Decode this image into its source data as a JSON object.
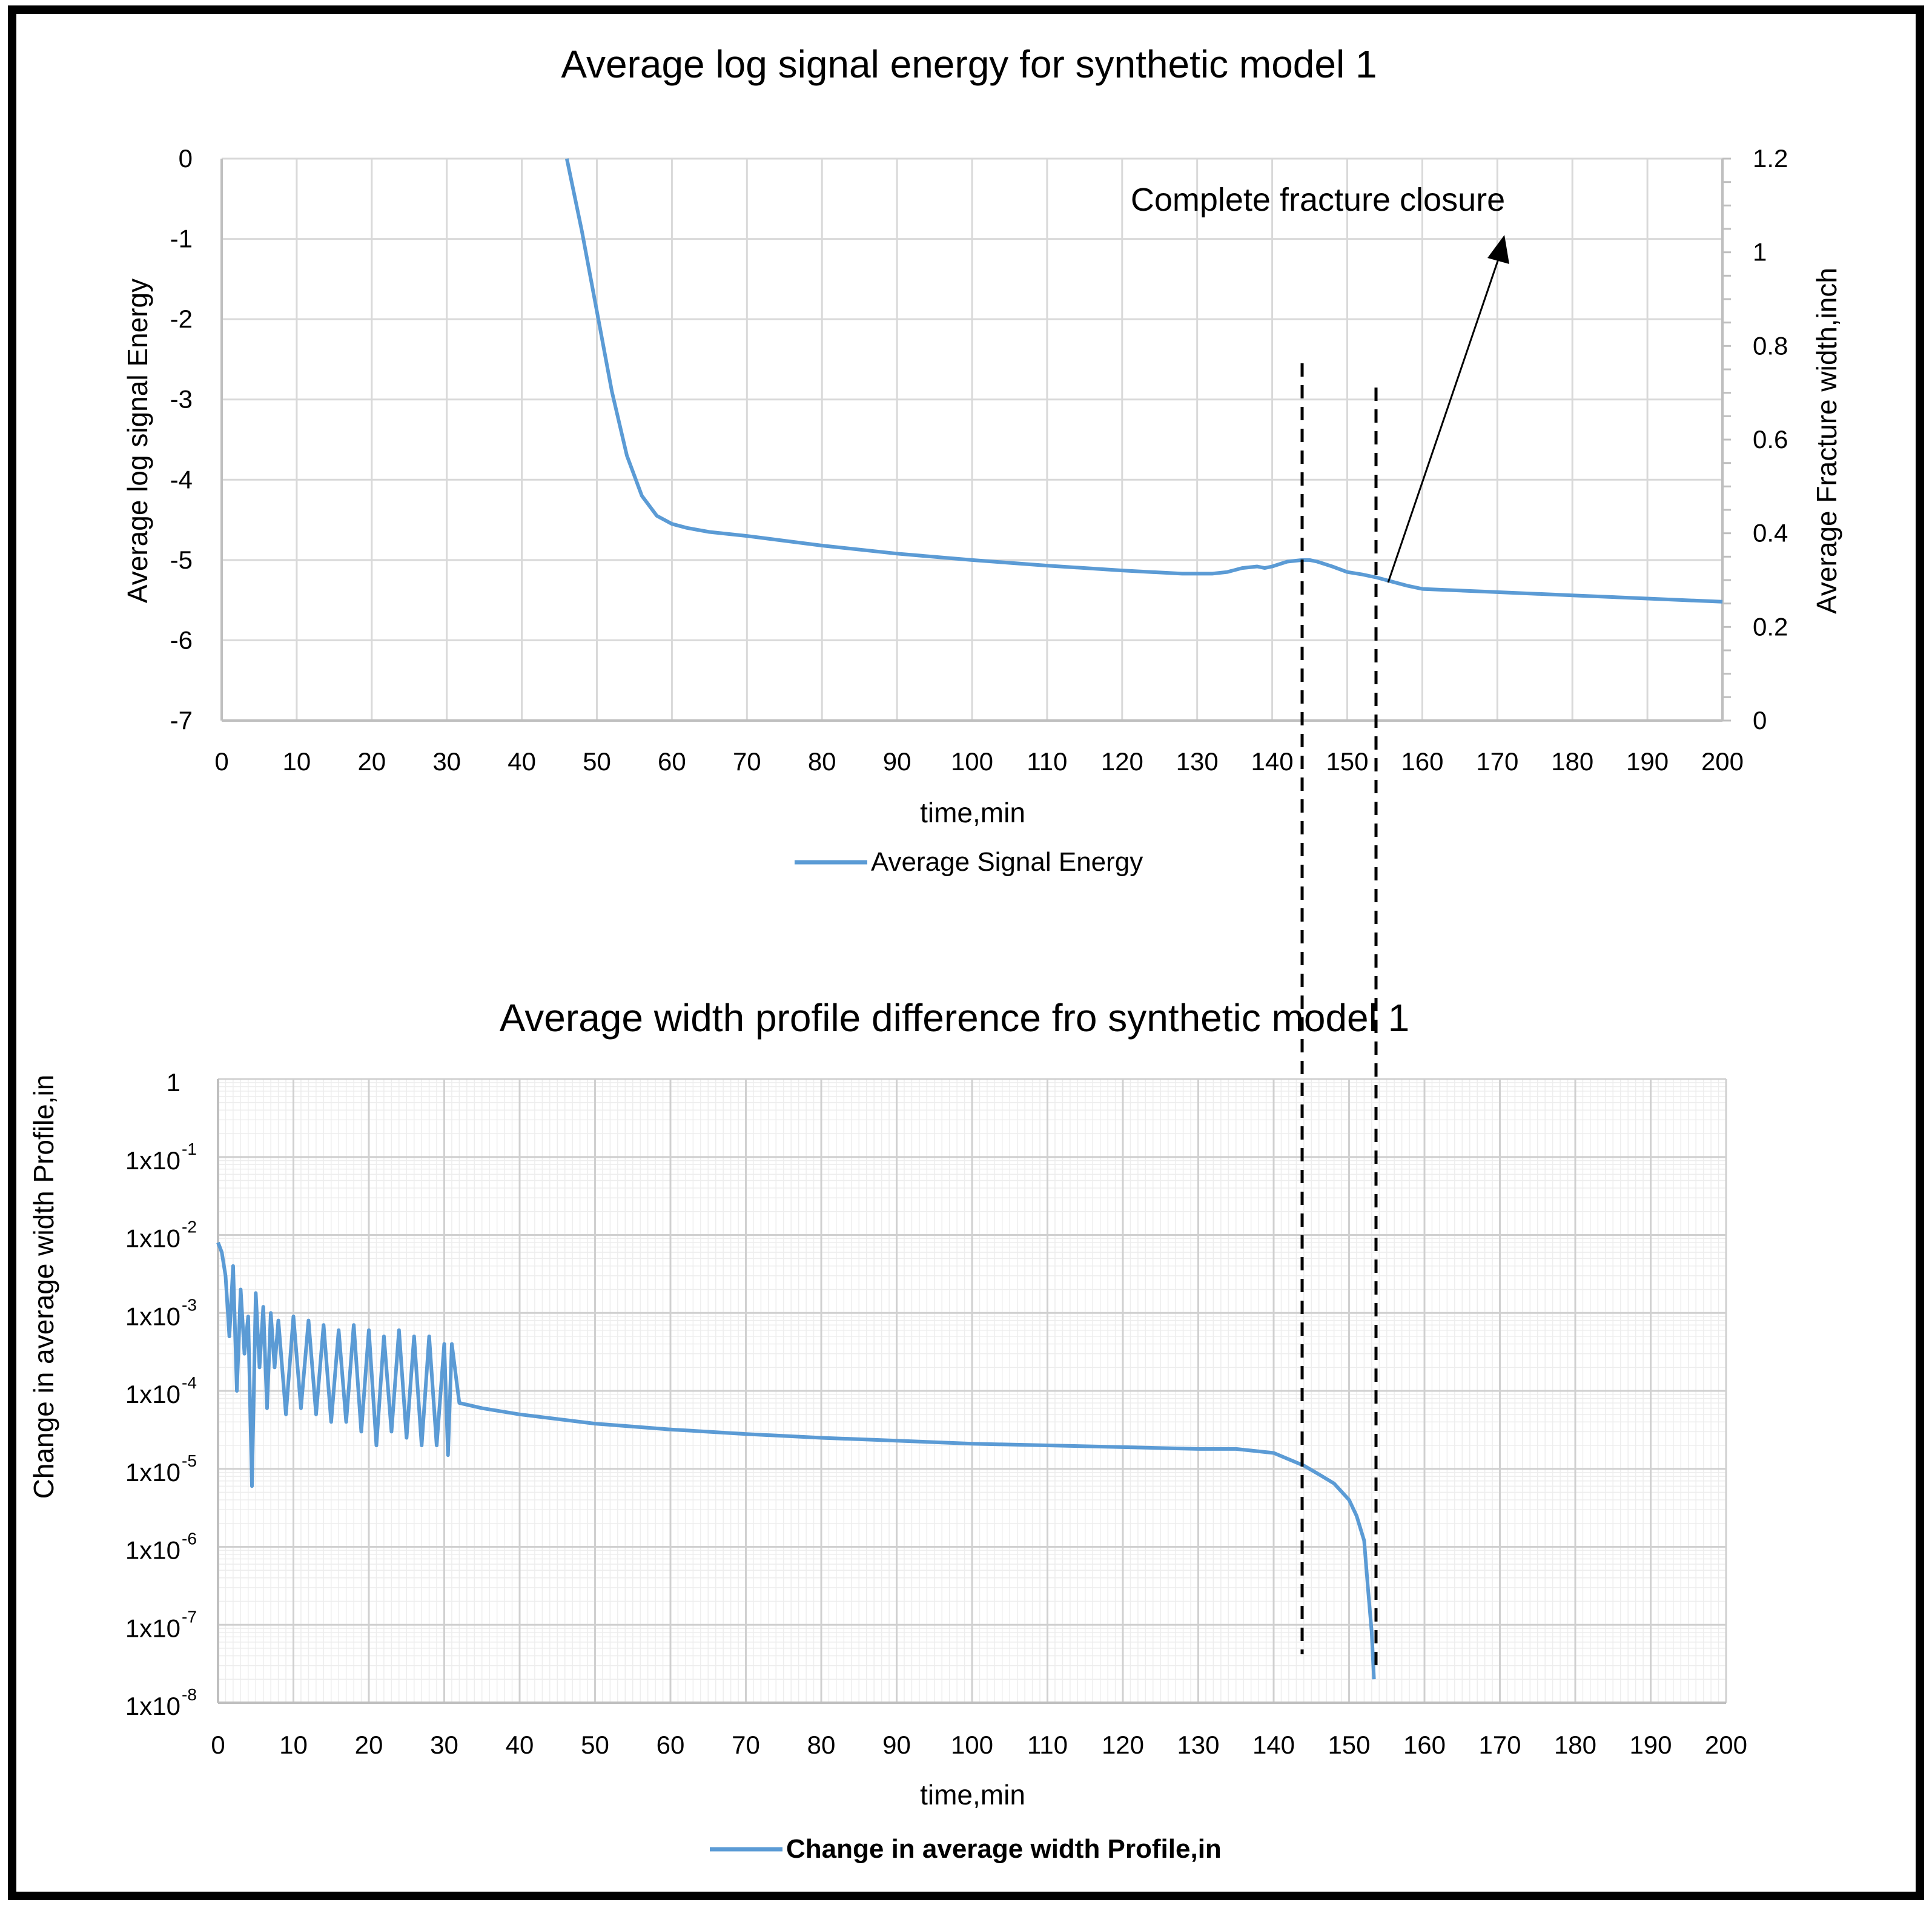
{
  "chart_data": [
    {
      "type": "line",
      "title": "Average log signal energy for synthetic model 1",
      "xlabel": "time,min",
      "ylabel": "Average log signal Energy",
      "y2label": "Average Fracture width,inch",
      "xlim": [
        0,
        200
      ],
      "ylim": [
        -7,
        0
      ],
      "y2lim": [
        0,
        1.2
      ],
      "x_ticks": [
        "0",
        "10",
        "20",
        "30",
        "40",
        "50",
        "60",
        "70",
        "80",
        "90",
        "100",
        "110",
        "120",
        "130",
        "140",
        "150",
        "160",
        "170",
        "180",
        "190",
        "200"
      ],
      "y_ticks": [
        "0",
        "-1",
        "-2",
        "-3",
        "-4",
        "-5",
        "-6",
        "-7"
      ],
      "y2_ticks": [
        "1.2",
        "1",
        "0.8",
        "0.6",
        "0.4",
        "0.2",
        "0"
      ],
      "grid": true,
      "legend": "bottom",
      "annotation": "Complete fracture closure",
      "series": [
        {
          "name": "Average Signal Energy",
          "color": "#5b9bd5",
          "x": [
            46,
            48,
            50,
            52,
            54,
            56,
            58,
            60,
            62,
            65,
            70,
            80,
            90,
            100,
            110,
            120,
            128,
            132,
            134,
            136,
            138,
            139,
            140,
            142,
            144,
            145,
            146,
            148,
            150,
            152,
            154,
            156,
            158,
            160,
            170,
            180,
            190,
            200
          ],
          "y": [
            0,
            -0.9,
            -1.9,
            -2.9,
            -3.7,
            -4.2,
            -4.45,
            -4.55,
            -4.6,
            -4.65,
            -4.7,
            -4.82,
            -4.92,
            -5.0,
            -5.07,
            -5.13,
            -5.17,
            -5.17,
            -5.15,
            -5.1,
            -5.08,
            -5.1,
            -5.08,
            -5.02,
            -5.0,
            -5.0,
            -5.02,
            -5.08,
            -5.15,
            -5.18,
            -5.22,
            -5.27,
            -5.32,
            -5.36,
            -5.4,
            -5.44,
            -5.48,
            -5.52
          ]
        }
      ]
    },
    {
      "type": "line",
      "title": "Average width profile difference fro synthetic model 1",
      "xlabel": "time,min",
      "ylabel": "Change in average width Profile,in",
      "yscale": "log",
      "xlim": [
        0,
        200
      ],
      "ylim": [
        1e-08,
        1
      ],
      "x_ticks": [
        "0",
        "10",
        "20",
        "30",
        "40",
        "50",
        "60",
        "70",
        "80",
        "90",
        "100",
        "110",
        "120",
        "130",
        "140",
        "150",
        "160",
        "170",
        "180",
        "190",
        "200"
      ],
      "y_ticks": [
        {
          "mantissa": "1",
          "exp": ""
        },
        {
          "mantissa": "1x10",
          "exp": "-1"
        },
        {
          "mantissa": "1x10",
          "exp": "-2"
        },
        {
          "mantissa": "1x10",
          "exp": "-3"
        },
        {
          "mantissa": "1x10",
          "exp": "-4"
        },
        {
          "mantissa": "1x10",
          "exp": "-5"
        },
        {
          "mantissa": "1x10",
          "exp": "-6"
        },
        {
          "mantissa": "1x10",
          "exp": "-7"
        },
        {
          "mantissa": "1x10",
          "exp": "-8"
        }
      ],
      "grid": true,
      "legend": "bottom",
      "series": [
        {
          "name": "Change in average width Profile,in",
          "color": "#5b9bd5",
          "x": [
            0,
            0.5,
            1,
            1.5,
            2,
            2.5,
            3,
            3.5,
            4,
            4.5,
            5,
            5.5,
            6,
            6.5,
            7,
            7.5,
            8,
            9,
            10,
            11,
            12,
            13,
            14,
            15,
            16,
            17,
            18,
            19,
            20,
            21,
            22,
            23,
            24,
            25,
            26,
            27,
            28,
            29,
            30,
            30.5,
            31,
            32,
            35,
            40,
            50,
            60,
            70,
            80,
            90,
            100,
            110,
            120,
            130,
            135,
            140,
            144,
            146,
            148,
            150,
            151,
            152,
            152.5,
            153,
            153.3
          ],
          "y": [
            0.008,
            0.006,
            0.003,
            0.0005,
            0.004,
            0.0001,
            0.002,
            0.0003,
            0.0009,
            6e-06,
            0.0018,
            0.0002,
            0.0012,
            6e-05,
            0.001,
            0.0002,
            0.0008,
            5e-05,
            0.0009,
            6e-05,
            0.0008,
            5e-05,
            0.0007,
            4e-05,
            0.0006,
            4e-05,
            0.0007,
            3e-05,
            0.0006,
            2e-05,
            0.0005,
            3e-05,
            0.0006,
            2.5e-05,
            0.0005,
            2e-05,
            0.0005,
            2e-05,
            0.0004,
            1.5e-05,
            0.0004,
            7e-05,
            6e-05,
            5e-05,
            3.8e-05,
            3.2e-05,
            2.8e-05,
            2.5e-05,
            2.3e-05,
            2.1e-05,
            2e-05,
            1.9e-05,
            1.8e-05,
            1.8e-05,
            1.6e-05,
            1.1e-05,
            8.5e-06,
            6.5e-06,
            4e-06,
            2.5e-06,
            1.2e-06,
            3e-07,
            8e-08,
            2e-08
          ]
        }
      ]
    }
  ]
}
